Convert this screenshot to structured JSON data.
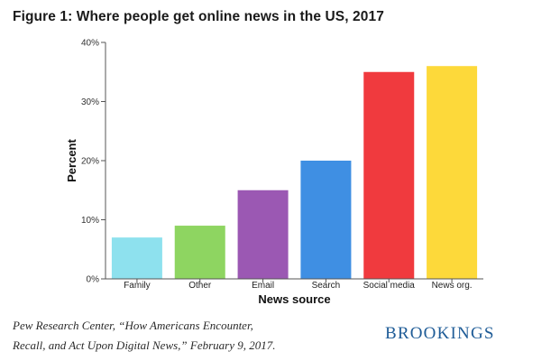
{
  "chart_data": {
    "type": "bar",
    "title": "Figure 1: Where people get online news in the US, 2017",
    "xlabel": "News source",
    "ylabel": "Percent",
    "categories": [
      "Family",
      "Other",
      "Email",
      "Search",
      "Social media",
      "News org."
    ],
    "values": [
      7,
      9,
      15,
      20,
      35,
      36
    ],
    "colors": [
      "#8ee1ee",
      "#8ed561",
      "#9b58b3",
      "#3f8fe3",
      "#f03a3e",
      "#fdd93a"
    ],
    "ylim": [
      0,
      40
    ],
    "yticks": [
      0,
      10,
      20,
      30,
      40
    ],
    "ytick_labels": [
      "0%",
      "10%",
      "20%",
      "30%",
      "40%"
    ],
    "grid": false,
    "legend": "none"
  },
  "source": {
    "line1": "Pew Research Center, “How Americans Encounter,",
    "line2": "Recall, and Act Upon Digital News,” February 9, 2017."
  },
  "brand": {
    "name": "BROOKINGS",
    "color": "#1f5c97"
  }
}
